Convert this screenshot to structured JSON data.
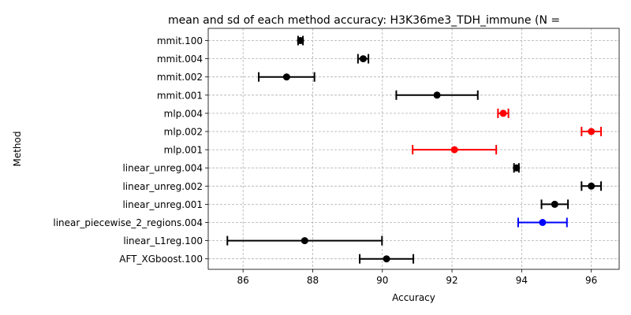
{
  "chart_data": {
    "type": "errorbar",
    "title": "mean and sd of each method accuracy: H3K36me3_TDH_immune (N = ",
    "xlabel": "Accuracy",
    "ylabel": "Method",
    "xlim": [
      85.0,
      96.8
    ],
    "xticks": [
      86,
      88,
      90,
      92,
      94,
      96
    ],
    "grid": true,
    "colors": {
      "default": "#000000",
      "mlp": "#ff0000",
      "piecewise": "#0000ff"
    },
    "points": [
      {
        "method": "mmit.100",
        "mean": 87.65,
        "sd": 0.07,
        "color": "#000000"
      },
      {
        "method": "mmit.004",
        "mean": 89.45,
        "sd": 0.15,
        "color": "#000000"
      },
      {
        "method": "mmit.002",
        "mean": 87.25,
        "sd": 0.8,
        "color": "#000000"
      },
      {
        "method": "mmit.001",
        "mean": 91.57,
        "sd": 1.17,
        "color": "#000000"
      },
      {
        "method": "mlp.004",
        "mean": 93.47,
        "sd": 0.15,
        "color": "#ff0000"
      },
      {
        "method": "mlp.002",
        "mean": 96.0,
        "sd": 0.28,
        "color": "#ff0000"
      },
      {
        "method": "mlp.001",
        "mean": 92.07,
        "sd": 1.2,
        "color": "#ff0000"
      },
      {
        "method": "linear_unreg.004",
        "mean": 93.85,
        "sd": 0.07,
        "color": "#000000"
      },
      {
        "method": "linear_unreg.002",
        "mean": 96.0,
        "sd": 0.28,
        "color": "#000000"
      },
      {
        "method": "linear_unreg.001",
        "mean": 94.95,
        "sd": 0.38,
        "color": "#000000"
      },
      {
        "method": "linear_piecewise_2_regions.004",
        "mean": 94.6,
        "sd": 0.7,
        "color": "#0000ff"
      },
      {
        "method": "linear_L1reg.100",
        "mean": 87.77,
        "sd": 2.22,
        "color": "#000000"
      },
      {
        "method": "AFT_XGboost.100",
        "mean": 90.12,
        "sd": 0.77,
        "color": "#000000"
      }
    ]
  }
}
